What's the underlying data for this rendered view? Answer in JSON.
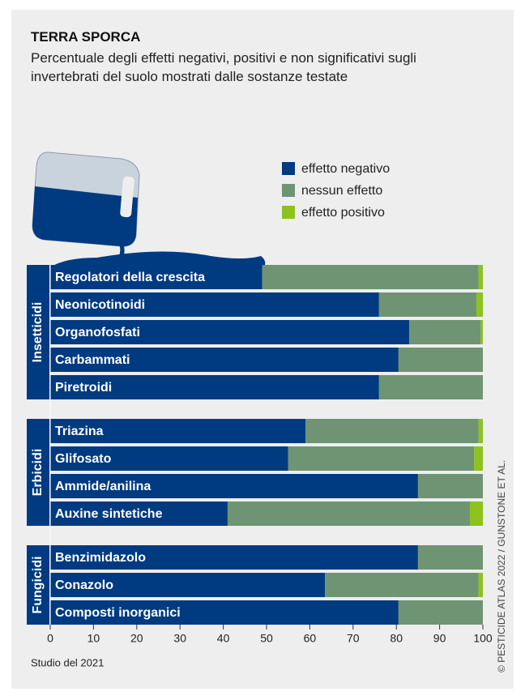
{
  "chart_data": {
    "type": "bar",
    "orientation": "horizontal",
    "stacked": true,
    "title": "TERRA SPORCA",
    "subtitle": "Percentuale degli effetti negativi, positivi e non significativi sugli invertebrati del suolo mostrati dalle sostanze testate",
    "groups": [
      {
        "name": "Insetticidi",
        "categories": [
          "Regolatori della crescita",
          "Neonicotinoidi",
          "Organofosfati",
          "Carbammati",
          "Piretroidi"
        ]
      },
      {
        "name": "Erbicidi",
        "categories": [
          "Triazina",
          "Glifosato",
          "Ammide/anilina",
          "Auxine sintetiche"
        ]
      },
      {
        "name": "Fungicidi",
        "categories": [
          "Benzimidazolo",
          "Conazolo",
          "Composti inorganici"
        ]
      }
    ],
    "series": [
      {
        "name": "effetto negativo",
        "color": "#003a80",
        "values": [
          49,
          76,
          83,
          80.5,
          76,
          59,
          55,
          85,
          41,
          85,
          63.5,
          80.5
        ]
      },
      {
        "name": "nessun effetto",
        "color": "#6f9473",
        "values": [
          50,
          22.5,
          16.5,
          19.5,
          24,
          40,
          43,
          15,
          56,
          15,
          35.5,
          19.5
        ]
      },
      {
        "name": "effetto positivo",
        "color": "#8dc21f",
        "values": [
          1,
          1.5,
          0.5,
          0,
          0,
          1,
          2,
          0,
          3,
          0,
          1,
          0
        ]
      }
    ],
    "xlim": [
      0,
      100
    ],
    "xticks": [
      0,
      10,
      20,
      30,
      40,
      50,
      60,
      70,
      80,
      90,
      100
    ],
    "note": "Studio del 2021",
    "credit": "© PESTICIDE ATLAS 2022 / GUNSTONE ET AL."
  }
}
